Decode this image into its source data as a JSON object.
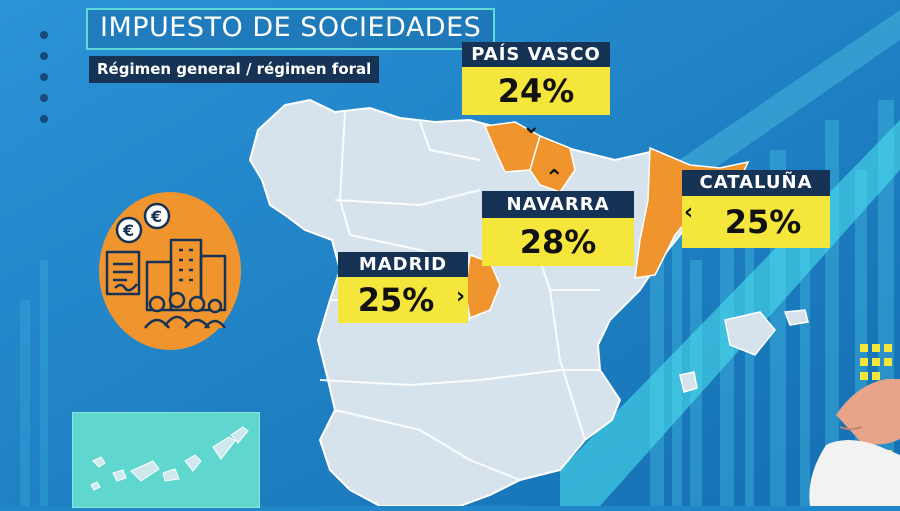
{
  "title": "IMPUESTO DE SOCIEDADES",
  "subtitle": "Régimen general / régimen foral",
  "regions": [
    {
      "name": "PAÍS VASCO",
      "rate": "24%"
    },
    {
      "name": "NAVARRA",
      "rate": "28%"
    },
    {
      "name": "CATALUÑA",
      "rate": "25%"
    },
    {
      "name": "MADRID",
      "rate": "25%"
    }
  ],
  "colors": {
    "background": "#1f86c8",
    "map_land": "#d6e3ec",
    "highlight": "#f0952e",
    "label_header": "#163355",
    "label_value": "#f5e63b",
    "accent": "#5fd8d8"
  },
  "icons": [
    "euro-coin-icon",
    "document-signature-icon",
    "office-building-icon",
    "people-group-icon"
  ]
}
